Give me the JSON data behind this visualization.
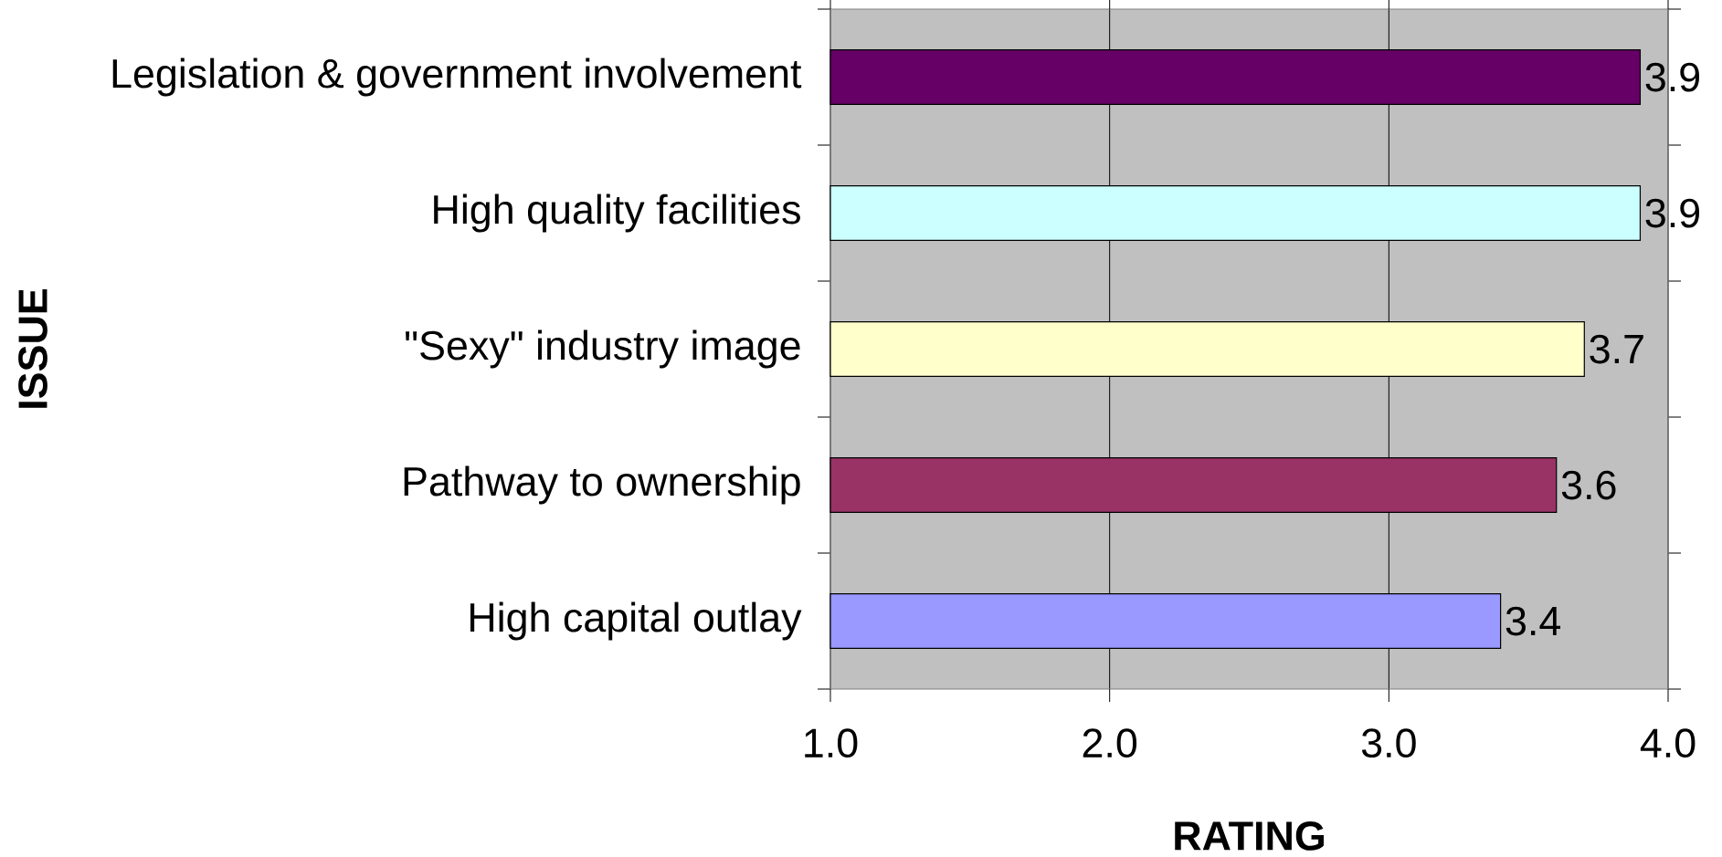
{
  "chart_data": {
    "type": "bar",
    "orientation": "horizontal",
    "xlabel": "RATING",
    "ylabel": "ISSUE",
    "categories": [
      "Legislation & government involvement",
      "High quality facilities",
      "\"Sexy\" industry image",
      "Pathway to ownership",
      "High capital outlay"
    ],
    "values": [
      3.9,
      3.9,
      3.7,
      3.6,
      3.4
    ],
    "colors": [
      "#660066",
      "#ccffff",
      "#ffffcc",
      "#993366",
      "#9999ff"
    ],
    "xlim": [
      1,
      4
    ],
    "xticks": [
      {
        "value": 1,
        "label": "1.0"
      },
      {
        "value": 2,
        "label": "2.0"
      },
      {
        "value": 3,
        "label": "3.0"
      },
      {
        "value": 4,
        "label": "4.0"
      }
    ],
    "grid": "x",
    "data_labels": true
  }
}
